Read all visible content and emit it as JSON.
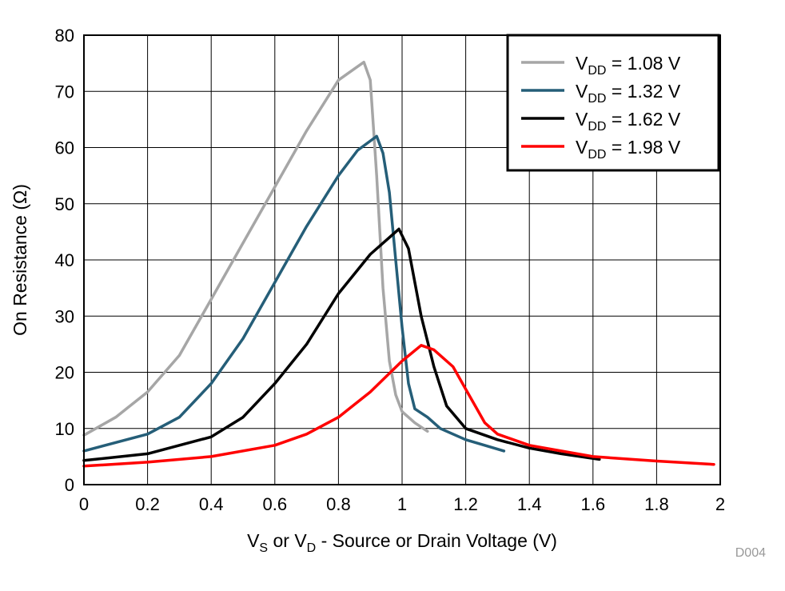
{
  "chart_data": {
    "type": "line",
    "title": "",
    "xlabel": {
      "parts": [
        [
          "V",
          ""
        ],
        [
          "S",
          "sub"
        ],
        [
          " or V",
          ""
        ],
        [
          "D",
          "sub"
        ],
        [
          " - Source or Drain Voltage (V)",
          ""
        ]
      ]
    },
    "ylabel": "On Resistance (Ω)",
    "xlim": [
      0,
      2
    ],
    "ylim": [
      0,
      80
    ],
    "xticks": [
      "0",
      "0.2",
      "0.4",
      "0.6",
      "0.8",
      "1",
      "1.2",
      "1.4",
      "1.6",
      "1.8",
      "2"
    ],
    "yticks": [
      "0",
      "10",
      "20",
      "30",
      "40",
      "50",
      "60",
      "70",
      "80"
    ],
    "grid": true,
    "legend_placement": "top-right",
    "watermark": "D004",
    "series": [
      {
        "name": "VDD = 1.08 V",
        "label_main": "V",
        "label_sub": "DD",
        "label_rest": " = 1.08 V",
        "color": "#a6a6a6",
        "x": [
          0,
          0.1,
          0.2,
          0.3,
          0.4,
          0.5,
          0.6,
          0.7,
          0.8,
          0.85,
          0.88,
          0.9,
          0.92,
          0.94,
          0.96,
          0.98,
          1.0,
          1.04,
          1.08
        ],
        "y": [
          8.8,
          12,
          16.5,
          23,
          33,
          43,
          53,
          63,
          72,
          74,
          75.2,
          72,
          55,
          35,
          22,
          16,
          13,
          11,
          9.5
        ]
      },
      {
        "name": "VDD = 1.32 V",
        "label_main": "V",
        "label_sub": "DD",
        "label_rest": " = 1.32 V",
        "color": "#255e78",
        "x": [
          0,
          0.2,
          0.3,
          0.4,
          0.5,
          0.6,
          0.7,
          0.8,
          0.86,
          0.92,
          0.94,
          0.96,
          0.98,
          1.0,
          1.02,
          1.04,
          1.08,
          1.12,
          1.2,
          1.32
        ],
        "y": [
          6,
          9,
          12,
          18,
          26,
          36,
          46,
          55,
          59.5,
          62,
          59,
          52,
          40,
          28,
          18,
          13.5,
          12,
          10,
          8,
          6
        ]
      },
      {
        "name": "VDD = 1.62 V",
        "label_main": "V",
        "label_sub": "DD",
        "label_rest": " = 1.62 V",
        "color": "#000000",
        "x": [
          0,
          0.2,
          0.4,
          0.5,
          0.6,
          0.7,
          0.8,
          0.9,
          0.96,
          0.99,
          1.02,
          1.06,
          1.1,
          1.14,
          1.2,
          1.3,
          1.4,
          1.5,
          1.62
        ],
        "y": [
          4.3,
          5.5,
          8.5,
          12,
          18,
          25,
          34,
          41,
          44,
          45.5,
          42,
          30,
          21,
          14,
          10,
          8,
          6.5,
          5.5,
          4.5
        ]
      },
      {
        "name": "VDD = 1.98 V",
        "label_main": "V",
        "label_sub": "DD",
        "label_rest": " = 1.98 V",
        "color": "#ff0000",
        "x": [
          0,
          0.2,
          0.4,
          0.6,
          0.7,
          0.8,
          0.9,
          1.0,
          1.06,
          1.1,
          1.16,
          1.2,
          1.26,
          1.3,
          1.4,
          1.5,
          1.6,
          1.8,
          1.98
        ],
        "y": [
          3.3,
          4,
          5,
          7,
          9,
          12,
          16.5,
          22,
          24.8,
          24,
          21,
          17,
          11,
          9,
          7,
          6,
          5,
          4.2,
          3.6
        ]
      }
    ]
  }
}
